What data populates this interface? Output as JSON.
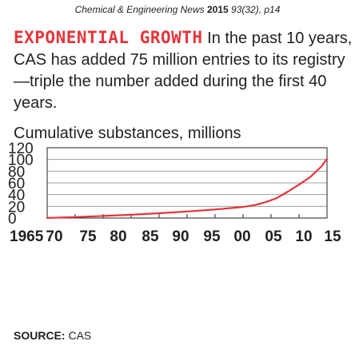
{
  "citation": {
    "journal": "Chemical & Engineering News",
    "year": "2015",
    "ref": "93(32), p14"
  },
  "intro": {
    "headline": "EXPONENTIAL GROWTH",
    "text": "In the past 10 years, CAS has added 75 million entries to its registry—triple the number added during the first 40 years."
  },
  "source": {
    "label": "SOURCE:",
    "value": "CAS"
  },
  "colors": {
    "accent": "#e3353a",
    "frame": "#231f20",
    "grid": "#9d9fa2"
  },
  "chart_data": {
    "type": "line",
    "title": "Cumulative substances, millions",
    "xlabel": "",
    "ylabel": "",
    "xlim": [
      1965,
      2015
    ],
    "ylim": [
      0,
      120
    ],
    "y_ticks": [
      0,
      20,
      40,
      60,
      80,
      100,
      120
    ],
    "y_tick_labels": [
      "0",
      "20",
      "40",
      "60",
      "80",
      "100",
      "120"
    ],
    "x_ticks": [
      1965,
      1970,
      1975,
      1980,
      1985,
      1990,
      1995,
      2000,
      2005,
      2010,
      2015
    ],
    "x_tick_labels": [
      "1965",
      "70",
      "75",
      "80",
      "85",
      "90",
      "95",
      "00",
      "05",
      "10",
      "15"
    ],
    "grid": true,
    "series": [
      {
        "color": "#e3353a",
        "x": [
          1965,
          1970,
          1975,
          1980,
          1985,
          1990,
          1995,
          2000,
          2002,
          2004,
          2006,
          2008,
          2010,
          2012,
          2014,
          2015
        ],
        "y": [
          0.2,
          1.6,
          3.5,
          5.6,
          8.2,
          11.2,
          14.6,
          19,
          22,
          27,
          34,
          45,
          57,
          70,
          88,
          101
        ]
      }
    ]
  }
}
